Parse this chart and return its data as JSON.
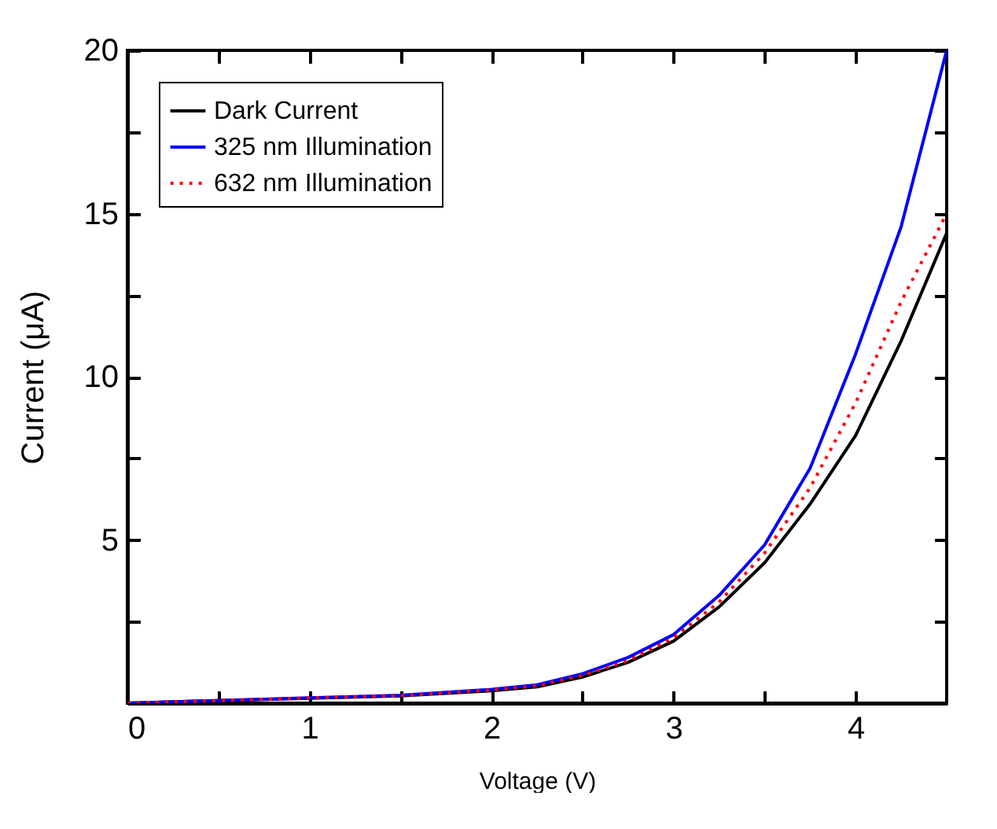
{
  "chart_data": {
    "type": "line",
    "xlabel": "Voltage (V)",
    "ylabel": "Current (μA)",
    "xlim": [
      0,
      4.5
    ],
    "ylim": [
      0,
      20
    ],
    "xticks": [
      0,
      {
        "value": 0.5,
        "label": null
      },
      1,
      {
        "value": 1.5,
        "label": null
      },
      2,
      {
        "value": 2.5,
        "label": null
      },
      3,
      {
        "value": 3.5,
        "label": null
      },
      4
    ],
    "yticks": [
      {
        "value": 0,
        "label": null
      },
      {
        "value": 2.5,
        "label": null
      },
      5,
      {
        "value": 7.5,
        "label": null
      },
      10,
      {
        "value": 12.5,
        "label": null
      },
      15,
      {
        "value": 17.5,
        "label": null
      },
      20
    ],
    "x": [
      0,
      0.5,
      1,
      1.5,
      2,
      2.25,
      2.5,
      2.75,
      3,
      3.25,
      3.5,
      3.75,
      4,
      4.25,
      4.5
    ],
    "series": [
      {
        "name": "Dark Current",
        "color": "#000000",
        "line_style": "solid",
        "values": [
          0,
          0.08,
          0.15,
          0.22,
          0.38,
          0.5,
          0.8,
          1.25,
          1.9,
          2.95,
          4.3,
          6.1,
          8.2,
          11.1,
          14.4
        ]
      },
      {
        "name": "325 nm Illumination",
        "color": "#0000ff",
        "line_style": "solid",
        "values": [
          0,
          0.08,
          0.16,
          0.24,
          0.42,
          0.56,
          0.9,
          1.4,
          2.1,
          3.3,
          4.85,
          7.2,
          10.7,
          14.6,
          20
        ]
      },
      {
        "name": "632 nm Illumination",
        "color": "#ff0000",
        "line_style": "dotted",
        "values": [
          0,
          0.08,
          0.16,
          0.23,
          0.4,
          0.53,
          0.85,
          1.3,
          2.0,
          3.1,
          4.6,
          6.6,
          9.2,
          12.3,
          15
        ]
      }
    ],
    "legend": "top left",
    "grid": false
  }
}
